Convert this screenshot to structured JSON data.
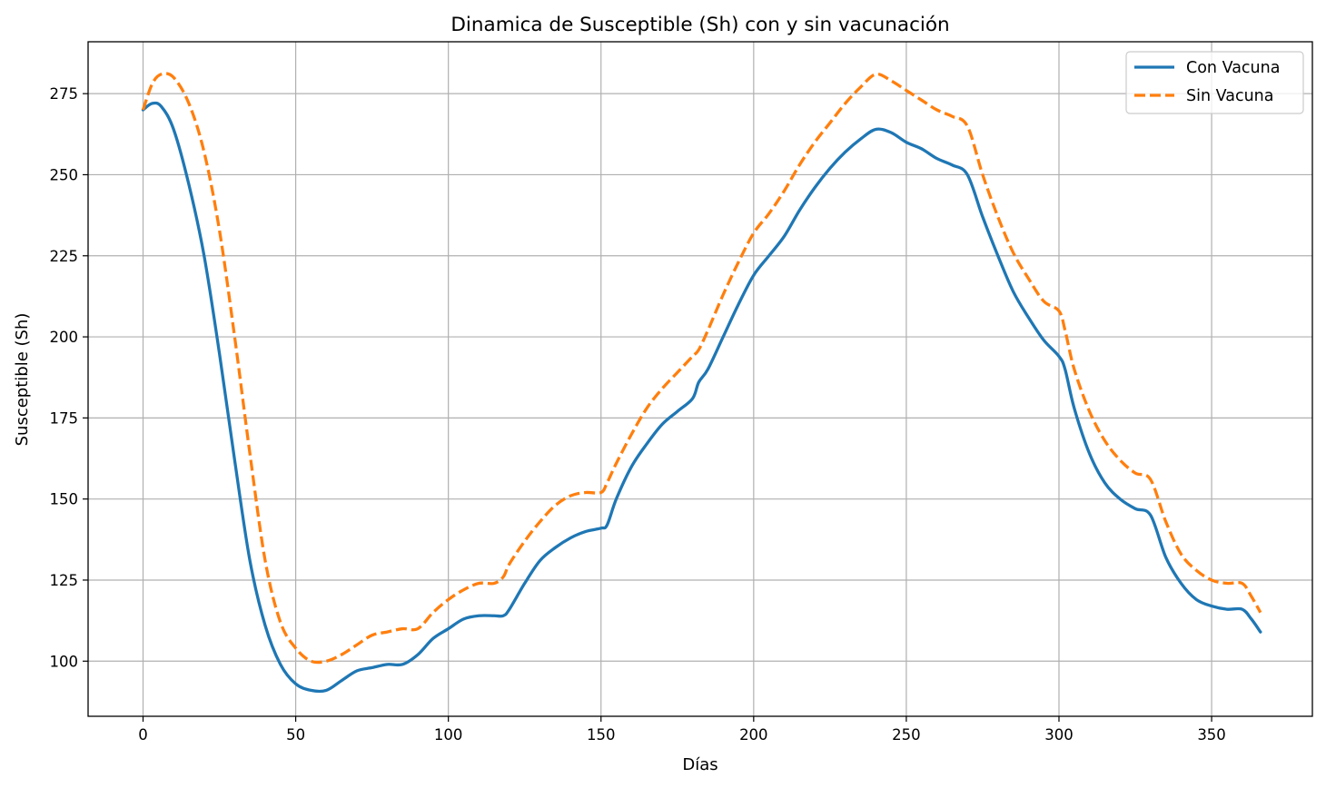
{
  "chart_data": {
    "type": "line",
    "title": "Dinamica de Susceptible (Sh) con y sin vacunación",
    "xlabel": "Días",
    "ylabel": "Susceptible (Sh)",
    "xlim": [
      -18,
      383
    ],
    "ylim": [
      83,
      291
    ],
    "xticks": [
      0,
      50,
      100,
      150,
      200,
      250,
      300,
      350
    ],
    "yticks": [
      100,
      125,
      150,
      175,
      200,
      225,
      250,
      275
    ],
    "grid": true,
    "legend_position": "top-right",
    "series": [
      {
        "name": "Con Vacuna",
        "color": "#1f77b4",
        "style": "solid",
        "points": [
          [
            0,
            270
          ],
          [
            3,
            272
          ],
          [
            6,
            271
          ],
          [
            10,
            264
          ],
          [
            15,
            247
          ],
          [
            20,
            225
          ],
          [
            25,
            195
          ],
          [
            30,
            162
          ],
          [
            35,
            131
          ],
          [
            40,
            111
          ],
          [
            45,
            99
          ],
          [
            50,
            93
          ],
          [
            55,
            91
          ],
          [
            60,
            91
          ],
          [
            65,
            94
          ],
          [
            70,
            97
          ],
          [
            75,
            98
          ],
          [
            80,
            99
          ],
          [
            85,
            99
          ],
          [
            90,
            102
          ],
          [
            95,
            107
          ],
          [
            100,
            110
          ],
          [
            105,
            113
          ],
          [
            110,
            114
          ],
          [
            115,
            114
          ],
          [
            118,
            114
          ],
          [
            120,
            116
          ],
          [
            125,
            124
          ],
          [
            130,
            131
          ],
          [
            135,
            135
          ],
          [
            140,
            138
          ],
          [
            145,
            140
          ],
          [
            150,
            141
          ],
          [
            152,
            142
          ],
          [
            155,
            150
          ],
          [
            160,
            160
          ],
          [
            165,
            167
          ],
          [
            170,
            173
          ],
          [
            175,
            177
          ],
          [
            180,
            181
          ],
          [
            182,
            186
          ],
          [
            185,
            190
          ],
          [
            190,
            200
          ],
          [
            195,
            210
          ],
          [
            200,
            219
          ],
          [
            205,
            225
          ],
          [
            210,
            231
          ],
          [
            215,
            239
          ],
          [
            220,
            246
          ],
          [
            225,
            252
          ],
          [
            230,
            257
          ],
          [
            235,
            261
          ],
          [
            240,
            264
          ],
          [
            245,
            263
          ],
          [
            250,
            260
          ],
          [
            255,
            258
          ],
          [
            260,
            255
          ],
          [
            265,
            253
          ],
          [
            270,
            250
          ],
          [
            275,
            237
          ],
          [
            280,
            225
          ],
          [
            285,
            214
          ],
          [
            290,
            206
          ],
          [
            295,
            199
          ],
          [
            300,
            194
          ],
          [
            302,
            190
          ],
          [
            305,
            178
          ],
          [
            310,
            164
          ],
          [
            315,
            155
          ],
          [
            320,
            150
          ],
          [
            325,
            147
          ],
          [
            330,
            145
          ],
          [
            335,
            132
          ],
          [
            340,
            124
          ],
          [
            345,
            119
          ],
          [
            350,
            117
          ],
          [
            355,
            116
          ],
          [
            360,
            116
          ],
          [
            363,
            113
          ],
          [
            366,
            109
          ]
        ]
      },
      {
        "name": "Sin Vacuna",
        "color": "#ff7f0e",
        "style": "dashed",
        "points": [
          [
            0,
            270
          ],
          [
            3,
            278
          ],
          [
            6,
            281
          ],
          [
            10,
            280
          ],
          [
            15,
            272
          ],
          [
            20,
            257
          ],
          [
            25,
            233
          ],
          [
            30,
            200
          ],
          [
            35,
            164
          ],
          [
            40,
            131
          ],
          [
            45,
            112
          ],
          [
            50,
            104
          ],
          [
            55,
            100
          ],
          [
            60,
            100
          ],
          [
            65,
            102
          ],
          [
            70,
            105
          ],
          [
            75,
            108
          ],
          [
            80,
            109
          ],
          [
            85,
            110
          ],
          [
            90,
            110
          ],
          [
            95,
            115
          ],
          [
            100,
            119
          ],
          [
            105,
            122
          ],
          [
            110,
            124
          ],
          [
            115,
            124
          ],
          [
            118,
            126
          ],
          [
            120,
            130
          ],
          [
            125,
            137
          ],
          [
            130,
            143
          ],
          [
            135,
            148
          ],
          [
            140,
            151
          ],
          [
            145,
            152
          ],
          [
            150,
            152
          ],
          [
            152,
            155
          ],
          [
            155,
            161
          ],
          [
            160,
            170
          ],
          [
            165,
            178
          ],
          [
            170,
            184
          ],
          [
            175,
            189
          ],
          [
            180,
            194
          ],
          [
            182,
            196
          ],
          [
            185,
            202
          ],
          [
            190,
            213
          ],
          [
            195,
            223
          ],
          [
            200,
            232
          ],
          [
            205,
            238
          ],
          [
            210,
            245
          ],
          [
            215,
            253
          ],
          [
            220,
            260
          ],
          [
            225,
            266
          ],
          [
            230,
            272
          ],
          [
            235,
            277
          ],
          [
            240,
            281
          ],
          [
            245,
            279
          ],
          [
            250,
            276
          ],
          [
            255,
            273
          ],
          [
            260,
            270
          ],
          [
            265,
            268
          ],
          [
            270,
            265
          ],
          [
            275,
            250
          ],
          [
            280,
            237
          ],
          [
            285,
            226
          ],
          [
            290,
            218
          ],
          [
            295,
            211
          ],
          [
            300,
            208
          ],
          [
            302,
            202
          ],
          [
            305,
            190
          ],
          [
            310,
            177
          ],
          [
            315,
            168
          ],
          [
            320,
            162
          ],
          [
            325,
            158
          ],
          [
            330,
            156
          ],
          [
            335,
            143
          ],
          [
            340,
            133
          ],
          [
            345,
            128
          ],
          [
            350,
            125
          ],
          [
            355,
            124
          ],
          [
            360,
            124
          ],
          [
            363,
            120
          ],
          [
            366,
            115
          ]
        ]
      }
    ]
  }
}
